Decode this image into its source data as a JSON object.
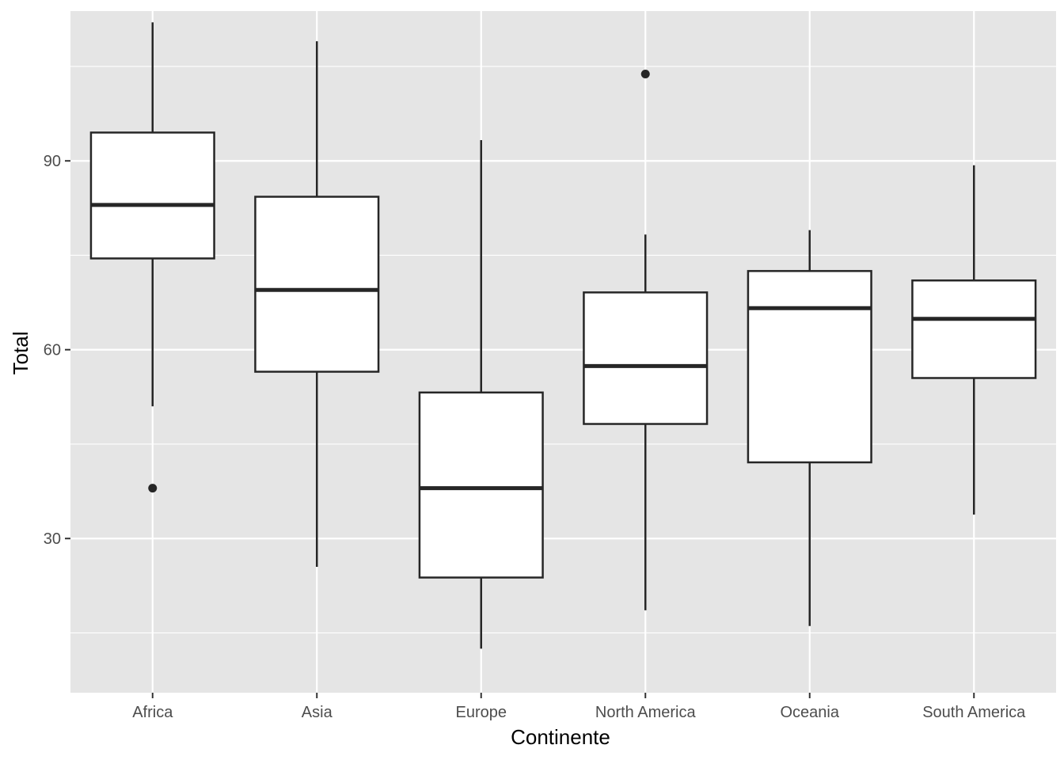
{
  "chart_data": {
    "type": "boxplot",
    "title": "",
    "xlabel": "Continente",
    "ylabel": "Total",
    "ylim": [
      5.5,
      113.8
    ],
    "yticks": [
      30,
      60,
      90
    ],
    "grid": true,
    "legend": "none",
    "colors": {
      "panel_background": "#e5e5e5",
      "grid": "#ffffff",
      "box_fill": "#ffffff",
      "box_stroke": "#262626"
    },
    "categories": [
      "Africa",
      "Asia",
      "Europe",
      "North America",
      "Oceania",
      "South America"
    ],
    "boxes": [
      {
        "category": "Africa",
        "whisker_low": 51,
        "q1": 74.5,
        "median": 83,
        "q3": 94.5,
        "whisker_high": 112,
        "outliers": [
          38
        ]
      },
      {
        "category": "Asia",
        "whisker_low": 25.5,
        "q1": 56.5,
        "median": 69.5,
        "q3": 84.3,
        "whisker_high": 109,
        "outliers": []
      },
      {
        "category": "Europe",
        "whisker_low": 12.5,
        "q1": 23.8,
        "median": 38,
        "q3": 53.2,
        "whisker_high": 93.3,
        "outliers": []
      },
      {
        "category": "North America",
        "whisker_low": 18.6,
        "q1": 48.2,
        "median": 57.4,
        "q3": 69.1,
        "whisker_high": 78.3,
        "outliers": [
          103.8
        ]
      },
      {
        "category": "Oceania",
        "whisker_low": 16.1,
        "q1": 42.1,
        "median": 66.6,
        "q3": 72.5,
        "whisker_high": 79,
        "outliers": []
      },
      {
        "category": "South America",
        "whisker_low": 33.8,
        "q1": 55.5,
        "median": 64.9,
        "q3": 71,
        "whisker_high": 89.3,
        "outliers": []
      }
    ]
  }
}
